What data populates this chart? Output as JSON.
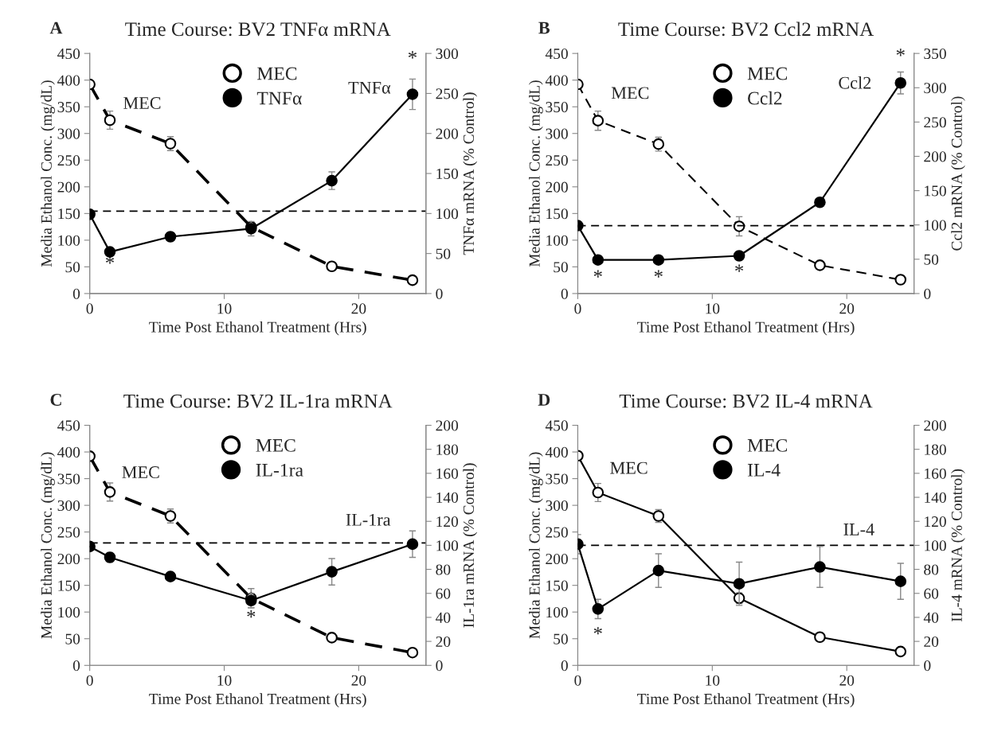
{
  "chart_data": [
    {
      "type": "line",
      "title": "Time Course: BV2 TNFα mRNA",
      "xlabel": "Time Post Ethanol Treatment (Hrs)",
      "ylabel": "Media Ethanol Conc. (mg/dL)",
      "y2label": "TNFα mRNA (% Control)",
      "x": [
        0,
        1.5,
        6,
        12,
        18,
        24
      ],
      "xlim": [
        0,
        25
      ],
      "xticks": [
        0,
        10,
        20
      ],
      "ylim": [
        0,
        450
      ],
      "yticks": [
        0,
        50,
        100,
        150,
        200,
        250,
        300,
        350,
        400,
        450
      ],
      "y2lim": [
        0,
        300
      ],
      "y2ticks": [
        0,
        50,
        100,
        150,
        200,
        250,
        300
      ],
      "series": [
        {
          "name": "MEC",
          "color": "#000000",
          "axis": "y",
          "line_style": "dashed",
          "values": [
            392,
            325,
            281,
            125,
            51,
            25
          ],
          "errors": [
            null,
            17,
            13,
            null,
            6,
            null
          ]
        },
        {
          "name": "TNFα",
          "color": "#000000",
          "axis": "y2",
          "line_style": "solid",
          "values": [
            99,
            52,
            71,
            81,
            141,
            249
          ],
          "errors": [
            null,
            null,
            null,
            9,
            11,
            19
          ]
        }
      ],
      "ref_lines": [
        {
          "axis": "y2",
          "value": 103,
          "color": "#000000",
          "line_style": "dashed"
        }
      ],
      "annotations": [
        "A",
        "MEC",
        "TNFα",
        "*",
        "*"
      ],
      "marker": "circle",
      "legend": "top",
      "grid": false
    },
    {
      "type": "line",
      "title": "Time Course: BV2 Ccl2 mRNA",
      "xlabel": "Time Post Ethanol Treatment (Hrs)",
      "ylabel": "Media Ethanol Conc. (mg/dL)",
      "y2label": "Ccl2 mRNA (% Control)",
      "x": [
        0,
        1.5,
        6,
        12,
        18,
        24
      ],
      "xlim": [
        0,
        25
      ],
      "xticks": [
        0,
        10,
        20
      ],
      "ylim": [
        0,
        450
      ],
      "yticks": [
        0,
        50,
        100,
        150,
        200,
        250,
        300,
        350,
        400,
        450
      ],
      "y2lim": [
        0,
        350
      ],
      "y2ticks": [
        0,
        50,
        100,
        150,
        200,
        250,
        300,
        350
      ],
      "series": [
        {
          "name": "MEC",
          "color": "#000000",
          "axis": "y",
          "line_style": "dashed",
          "values": [
            392,
            324,
            280,
            126,
            53,
            26
          ],
          "errors": [
            null,
            18,
            13,
            18,
            null,
            null
          ]
        },
        {
          "name": "Ccl2",
          "color": "#000000",
          "axis": "y2",
          "line_style": "solid",
          "values": [
            99,
            49,
            49,
            55,
            133,
            307
          ],
          "errors": [
            null,
            null,
            null,
            null,
            5,
            16
          ]
        }
      ],
      "ref_lines": [
        {
          "axis": "y2",
          "value": 99,
          "color": "#000000",
          "line_style": "dashed"
        }
      ],
      "annotations": [
        "B",
        "MEC",
        "Ccl2",
        "*",
        "*",
        "*",
        "*"
      ],
      "marker": "circle",
      "legend": "top",
      "grid": false
    },
    {
      "type": "line",
      "title": "Time Course: BV2 IL-1ra mRNA",
      "xlabel": "Time Post Ethanol Treatment (Hrs)",
      "ylabel": "Media Ethanol Conc. (mg/dL)",
      "y2label": "IL-1ra mRNA (% Control)",
      "x": [
        0,
        1.5,
        6,
        12,
        18,
        24
      ],
      "xlim": [
        0,
        25
      ],
      "xticks": [
        0,
        10,
        20
      ],
      "ylim": [
        0,
        450
      ],
      "yticks": [
        0,
        50,
        100,
        150,
        200,
        250,
        300,
        350,
        400,
        450
      ],
      "y2lim": [
        0,
        200
      ],
      "y2ticks": [
        0,
        20,
        40,
        60,
        80,
        100,
        120,
        140,
        160,
        180,
        200
      ],
      "series": [
        {
          "name": "MEC",
          "color": "#000000",
          "axis": "y",
          "line_style": "dashed",
          "values": [
            392,
            325,
            280,
            126,
            52,
            24
          ],
          "errors": [
            null,
            17,
            13,
            18,
            null,
            null
          ]
        },
        {
          "name": "IL-1ra",
          "color": "#000000",
          "axis": "y2",
          "line_style": "solid",
          "values": [
            99,
            90,
            74,
            54,
            78,
            101
          ],
          "errors": [
            null,
            4,
            null,
            6,
            11,
            11
          ]
        }
      ],
      "ref_lines": [
        {
          "axis": "y2",
          "value": 102,
          "color": "#000000",
          "line_style": "dashed"
        }
      ],
      "annotations": [
        "C",
        "MEC",
        "IL-1ra",
        "*"
      ],
      "marker": "circle",
      "legend": "top",
      "grid": false
    },
    {
      "type": "line",
      "title": "Time Course: BV2 IL-4 mRNA",
      "xlabel": "Time Post Ethanol Treatment (Hrs)",
      "ylabel": "Media Ethanol Conc. (mg/dL)",
      "y2label": "IL-4 mRNA (% Control)",
      "x": [
        0,
        1.5,
        6,
        12,
        18,
        24
      ],
      "xlim": [
        0,
        25
      ],
      "xticks": [
        0,
        10,
        20
      ],
      "ylim": [
        0,
        450
      ],
      "yticks": [
        0,
        50,
        100,
        150,
        200,
        250,
        300,
        350,
        400,
        450
      ],
      "y2lim": [
        0,
        200
      ],
      "y2ticks": [
        0,
        20,
        40,
        60,
        80,
        100,
        120,
        140,
        160,
        180,
        200
      ],
      "series": [
        {
          "name": "MEC",
          "color": "#000000",
          "axis": "y",
          "line_style": "solid",
          "values": [
            393,
            324,
            280,
            126,
            53,
            26
          ],
          "errors": [
            null,
            17,
            12,
            10,
            null,
            null
          ]
        },
        {
          "name": "IL-4",
          "color": "#000000",
          "axis": "y2",
          "line_style": "solid",
          "values": [
            101,
            47,
            79,
            68,
            82,
            70
          ],
          "errors": [
            8,
            8,
            14,
            18,
            17,
            15
          ]
        }
      ],
      "ref_lines": [
        {
          "axis": "y2",
          "value": 100,
          "color": "#000000",
          "line_style": "dashed"
        }
      ],
      "annotations": [
        "D",
        "MEC",
        "IL-4",
        "*"
      ],
      "marker": "circle",
      "legend": "top",
      "grid": false
    }
  ]
}
